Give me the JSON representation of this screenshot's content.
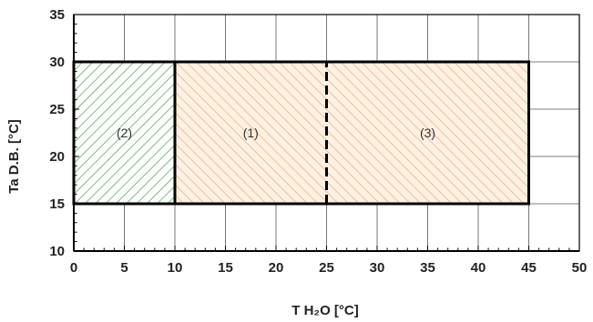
{
  "chart_data": {
    "type": "area",
    "title": "",
    "xlabel": "T H₂O [°C]",
    "ylabel": "Ta D.B. [°C]",
    "xlim": [
      0,
      50
    ],
    "ylim": [
      10,
      35
    ],
    "x_ticks": [
      0,
      5,
      10,
      15,
      20,
      25,
      30,
      35,
      40,
      45,
      50
    ],
    "y_ticks": [
      10,
      15,
      20,
      25,
      30,
      35
    ],
    "grid": true,
    "regions": [
      {
        "label": "(2)",
        "x": [
          0,
          10
        ],
        "y": [
          15,
          30
        ],
        "hatch": "diagonal",
        "color": "#3a9a3a",
        "fill": "#ffffff"
      },
      {
        "label": "(1)",
        "x": [
          10,
          25
        ],
        "y": [
          15,
          30
        ],
        "hatch": "diagonal",
        "color": "#e8a56a",
        "fill": "#fdf1e4"
      },
      {
        "label": "(3)",
        "x": [
          25,
          45
        ],
        "y": [
          15,
          30
        ],
        "hatch": "diagonal",
        "color": "#e8a56a",
        "fill": "#fdf1e4"
      }
    ],
    "boundaries": [
      {
        "x": [
          0,
          45
        ],
        "y": [
          15,
          30
        ],
        "style": "solid"
      },
      {
        "x": [
          10,
          10
        ],
        "y": [
          15,
          30
        ],
        "style": "solid"
      },
      {
        "x": [
          25,
          25
        ],
        "y": [
          15,
          30
        ],
        "style": "dashed"
      }
    ]
  }
}
